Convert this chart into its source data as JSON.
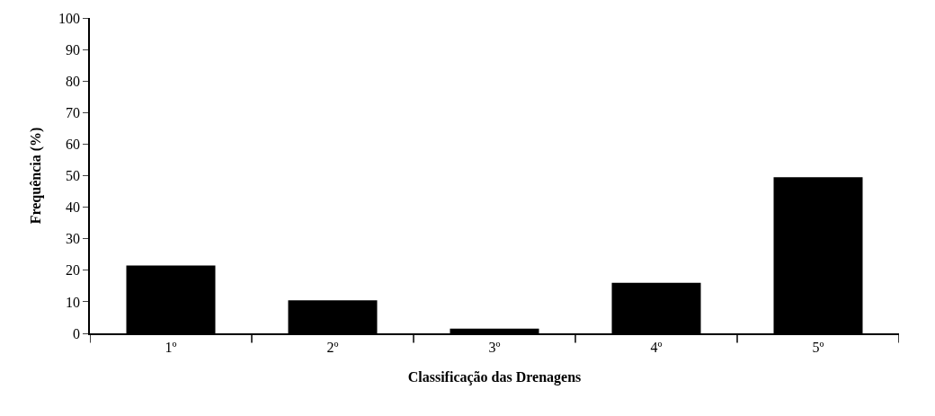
{
  "chart_data": {
    "type": "bar",
    "xlabel": "Classificação das Drenagens",
    "ylabel": "Frequência (%)",
    "categories": [
      "1º",
      "2º",
      "3º",
      "4º",
      "5º"
    ],
    "values": [
      21.5,
      10.5,
      1.5,
      16,
      49.5
    ],
    "color": "#000000",
    "ylim": [
      0,
      100
    ],
    "yticks": [
      0,
      10,
      20,
      30,
      40,
      50,
      60,
      70,
      80,
      90,
      100
    ]
  }
}
